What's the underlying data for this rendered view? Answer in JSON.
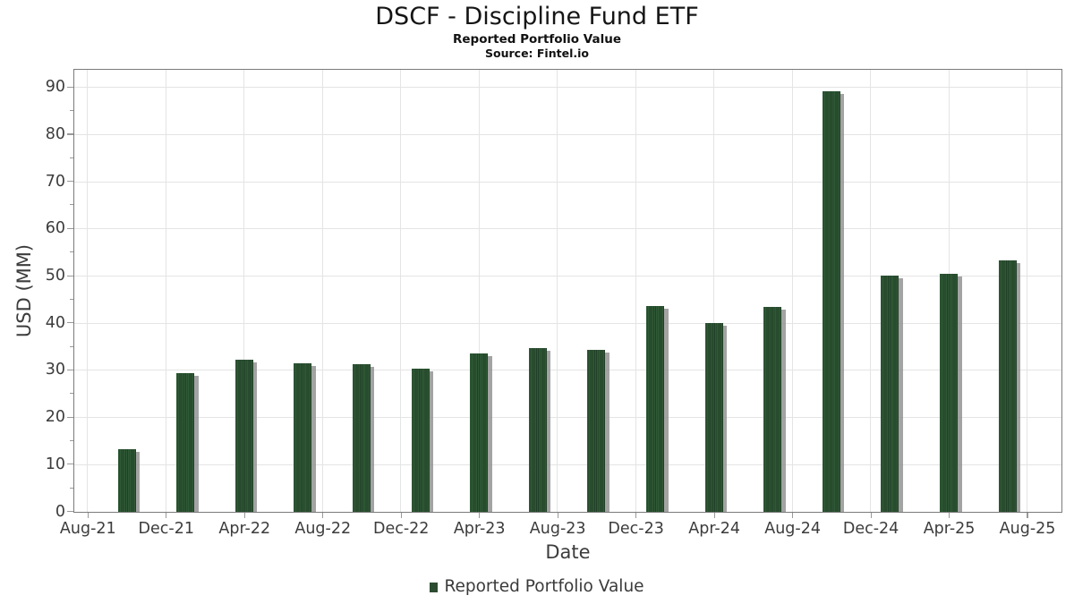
{
  "header": {
    "title": "DSCF - Discipline Fund ETF",
    "subtitle": "Reported Portfolio Value",
    "source": "Source: Fintel.io"
  },
  "chart_data": {
    "type": "bar",
    "title": "DSCF - Discipline Fund ETF",
    "subtitle": "Reported Portfolio Value",
    "source": "Source: Fintel.io",
    "xlabel": "Date",
    "ylabel": "USD (MM)",
    "x_tick_labels": [
      "Aug-21",
      "Dec-21",
      "Apr-22",
      "Aug-22",
      "Dec-22",
      "Apr-23",
      "Aug-23",
      "Dec-23",
      "Apr-24",
      "Aug-24",
      "Dec-24",
      "Apr-25",
      "Aug-25"
    ],
    "y_ticks": [
      0,
      10,
      20,
      30,
      40,
      50,
      60,
      70,
      80,
      90
    ],
    "y_minor_tick_step": 5,
    "ylim": [
      0,
      94
    ],
    "grid": true,
    "legend": {
      "position": "bottom",
      "entries": [
        {
          "label": "Reported Portfolio Value",
          "color": "#2c4c31"
        }
      ]
    },
    "series": [
      {
        "name": "Reported Portfolio Value",
        "points": [
          {
            "date": "Oct-21",
            "value": 13.2
          },
          {
            "date": "Jan-22",
            "value": 29.5
          },
          {
            "date": "Apr-22",
            "value": 32.2
          },
          {
            "date": "Jul-22",
            "value": 31.5
          },
          {
            "date": "Oct-22",
            "value": 31.4
          },
          {
            "date": "Jan-23",
            "value": 30.3
          },
          {
            "date": "Apr-23",
            "value": 33.5
          },
          {
            "date": "Jul-23",
            "value": 34.7
          },
          {
            "date": "Oct-23",
            "value": 34.3
          },
          {
            "date": "Jan-24",
            "value": 43.7
          },
          {
            "date": "Apr-24",
            "value": 40.1
          },
          {
            "date": "Jul-24",
            "value": 43.4
          },
          {
            "date": "Oct-24",
            "value": 89.1
          },
          {
            "date": "Jan-25",
            "value": 50.1
          },
          {
            "date": "Apr-25",
            "value": 50.4
          },
          {
            "date": "Jul-25",
            "value": 53.3
          }
        ]
      }
    ]
  },
  "colors": {
    "bar_stripe_light": "#2f5a36",
    "bar_stripe_dark": "#213f27",
    "bar_shadow": "#8c8c8c",
    "frame": "#7b7b7b",
    "gridline": "#e4e4e4",
    "tick": "#999999",
    "text": "#3c3c3c",
    "title_text": "#151515",
    "legend_swatch": "#2c4c31",
    "background": "#ffffff"
  }
}
